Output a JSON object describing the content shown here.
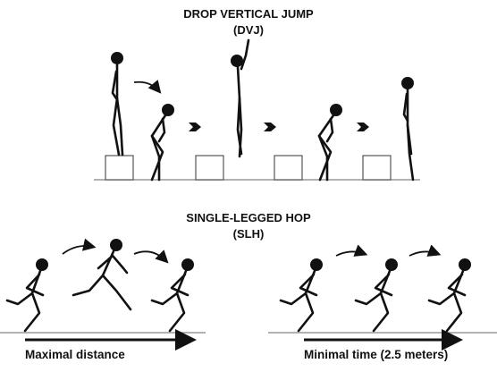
{
  "dvj": {
    "title": "DROP VERTICAL JUMP",
    "abbr": "(DVJ)"
  },
  "slh": {
    "title": "SINGLE-LEGGED HOP",
    "abbr": "(SLH)",
    "left_caption": "Maximal distance",
    "right_caption": "Minimal time (2.5 meters)"
  }
}
